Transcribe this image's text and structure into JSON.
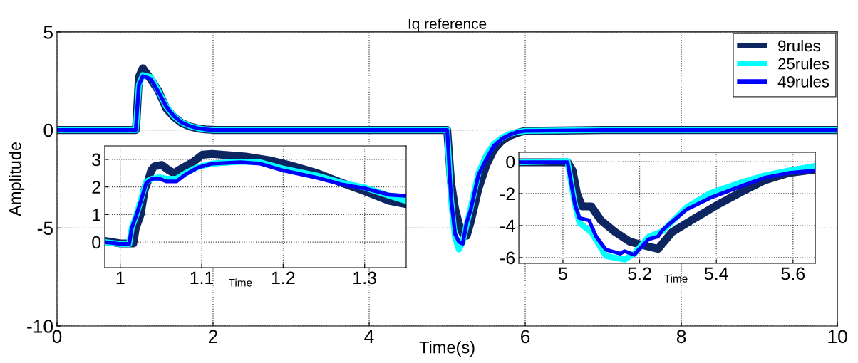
{
  "chart_data": [
    {
      "type": "line",
      "title": "Iq reference",
      "xlabel": "Time(s)",
      "ylabel": "Amplitude",
      "xlim": [
        0,
        10
      ],
      "ylim": [
        -10,
        5
      ],
      "xticks": [
        0,
        2,
        4,
        6,
        8,
        10
      ],
      "yticks": [
        -10,
        -5,
        0,
        5
      ],
      "grid": true,
      "legend": "top right",
      "line_style": "solid",
      "marker": "none",
      "x": [
        0,
        0.5,
        1.0,
        1.01,
        1.02,
        1.05,
        1.1,
        1.2,
        1.3,
        1.4,
        1.5,
        1.6,
        1.7,
        1.8,
        1.9,
        2.0,
        2.5,
        3,
        3.5,
        4,
        4.5,
        5.0,
        5.05,
        5.1,
        5.15,
        5.2,
        5.25,
        5.3,
        5.4,
        5.5,
        5.6,
        5.7,
        5.8,
        5.9,
        6.0,
        7,
        8,
        9,
        10
      ],
      "series": [
        {
          "name": "9rules",
          "color": "#0d2560",
          "values": [
            0,
            0,
            0,
            0,
            0.5,
            2.7,
            3.15,
            2.6,
            2.0,
            1.1,
            0.65,
            0.35,
            0.18,
            0.08,
            0.03,
            0,
            0,
            0,
            0,
            0,
            0,
            0,
            -2.7,
            -4.0,
            -4.8,
            -5.3,
            -5.4,
            -4.7,
            -3.0,
            -1.8,
            -1.0,
            -0.55,
            -0.3,
            -0.15,
            -0.05,
            0,
            0,
            0,
            0
          ]
        },
        {
          "name": "25rules",
          "color": "#00ffff",
          "values": [
            0,
            0,
            0,
            0,
            0.6,
            2.3,
            2.8,
            2.7,
            2.0,
            1.2,
            0.7,
            0.38,
            0.2,
            0.09,
            0.03,
            0,
            0,
            0,
            0,
            0,
            0,
            0,
            -3.6,
            -5.5,
            -6.1,
            -5.7,
            -4.8,
            -4.0,
            -2.2,
            -1.3,
            -0.7,
            -0.4,
            -0.2,
            -0.1,
            -0.05,
            0,
            0,
            0,
            0
          ]
        },
        {
          "name": "49rules",
          "color": "#0000ff",
          "values": [
            0,
            0,
            0,
            0,
            0.6,
            2.3,
            2.75,
            2.6,
            1.95,
            1.2,
            0.7,
            0.38,
            0.2,
            0.09,
            0.03,
            0,
            0,
            0,
            0,
            0,
            0,
            0,
            -3.5,
            -5.3,
            -5.7,
            -5.8,
            -4.7,
            -4.1,
            -2.3,
            -1.5,
            -0.8,
            -0.45,
            -0.25,
            -0.1,
            -0.05,
            0,
            0,
            0,
            0
          ]
        }
      ]
    },
    {
      "type": "line",
      "xlabel": "Time",
      "xlim": [
        0.981,
        1.351
      ],
      "ylim": [
        -0.93,
        3.49
      ],
      "xticks": [
        1,
        1.1,
        1.2,
        1.3
      ],
      "yticks": [
        0,
        1,
        2,
        3
      ],
      "grid": true,
      "line_style": "solid",
      "marker": "none",
      "series": [
        {
          "color": "#0d2560",
          "x": [
            0.981,
            1.0,
            1.016,
            1.019,
            1.025,
            1.03,
            1.035,
            1.038,
            1.042,
            1.051,
            1.06,
            1.066,
            1.077,
            1.089,
            1.101,
            1.113,
            1.154,
            1.183,
            1.212,
            1.242,
            1.271,
            1.3,
            1.33,
            1.35
          ],
          "values": [
            0.04,
            -0.05,
            -0.05,
            0.5,
            1.0,
            1.9,
            2.3,
            2.6,
            2.75,
            2.8,
            2.6,
            2.5,
            2.7,
            2.9,
            3.17,
            3.2,
            3.1,
            2.97,
            2.76,
            2.5,
            2.16,
            1.85,
            1.5,
            1.38
          ]
        },
        {
          "color": "#00ffff",
          "x": [
            0.981,
            1.0,
            1.011,
            1.014,
            1.02,
            1.026,
            1.032,
            1.039,
            1.048,
            1.057,
            1.069,
            1.08,
            1.095,
            1.113,
            1.148,
            1.171,
            1.2,
            1.242,
            1.271,
            1.3,
            1.33,
            1.35
          ],
          "values": [
            0,
            -0.07,
            -0.07,
            0.5,
            1.0,
            1.6,
            2.2,
            2.3,
            2.35,
            2.3,
            2.3,
            2.5,
            2.72,
            2.85,
            2.92,
            2.9,
            2.67,
            2.41,
            2.16,
            1.98,
            1.68,
            1.5
          ]
        },
        {
          "color": "#0000ff",
          "x": [
            0.981,
            1.0,
            1.011,
            1.014,
            1.02,
            1.026,
            1.032,
            1.039,
            1.048,
            1.057,
            1.069,
            1.08,
            1.095,
            1.113,
            1.148,
            1.171,
            1.2,
            1.242,
            1.271,
            1.3,
            1.33,
            1.35
          ],
          "values": [
            0,
            -0.07,
            -0.07,
            0.5,
            1.0,
            1.55,
            2.15,
            2.3,
            2.3,
            2.2,
            2.2,
            2.45,
            2.7,
            2.85,
            2.9,
            2.85,
            2.6,
            2.33,
            2.1,
            1.95,
            1.72,
            1.68
          ]
        }
      ]
    },
    {
      "type": "line",
      "xlabel": "Time",
      "xlim": [
        4.885,
        5.658
      ],
      "ylim": [
        -6.36,
        0.58
      ],
      "xticks": [
        5,
        5.2,
        5.4,
        5.6
      ],
      "yticks": [
        -6,
        -4,
        -2,
        0
      ],
      "grid": true,
      "line_style": "solid",
      "marker": "none",
      "series": [
        {
          "color": "#0d2560",
          "x": [
            4.885,
            4.94,
            5.012,
            5.025,
            5.037,
            5.05,
            5.074,
            5.099,
            5.136,
            5.174,
            5.21,
            5.248,
            5.285,
            5.335,
            5.403,
            5.465,
            5.527,
            5.589,
            5.658
          ],
          "values": [
            -0.04,
            -0.04,
            -0.04,
            -0.56,
            -2.04,
            -2.8,
            -2.8,
            -3.67,
            -4.4,
            -5.0,
            -5.23,
            -5.45,
            -4.4,
            -3.67,
            -2.7,
            -1.9,
            -1.16,
            -0.71,
            -0.49
          ]
        },
        {
          "color": "#00ffff",
          "x": [
            4.885,
            5.012,
            5.019,
            5.031,
            5.043,
            5.074,
            5.112,
            5.161,
            5.186,
            5.223,
            5.26,
            5.322,
            5.384,
            5.465,
            5.527,
            5.589,
            5.658
          ],
          "values": [
            -0.04,
            0.03,
            -1.0,
            -2.64,
            -3.82,
            -4.41,
            -5.9,
            -6.12,
            -5.75,
            -4.71,
            -4.34,
            -2.86,
            -1.97,
            -1.3,
            -0.86,
            -0.56,
            -0.27
          ]
        },
        {
          "color": "#0000ff",
          "x": [
            4.885,
            5.012,
            5.019,
            5.031,
            5.043,
            5.068,
            5.087,
            5.112,
            5.149,
            5.161,
            5.186,
            5.223,
            5.248,
            5.26,
            5.322,
            5.384,
            5.465,
            5.527,
            5.589,
            5.658
          ],
          "values": [
            -0.04,
            -0.04,
            -1.0,
            -2.64,
            -3.53,
            -3.67,
            -4.7,
            -5.5,
            -5.75,
            -5.6,
            -5.82,
            -4.86,
            -4.68,
            -4.27,
            -3.0,
            -2.27,
            -1.53,
            -1.0,
            -0.71,
            -0.56
          ]
        }
      ]
    }
  ]
}
